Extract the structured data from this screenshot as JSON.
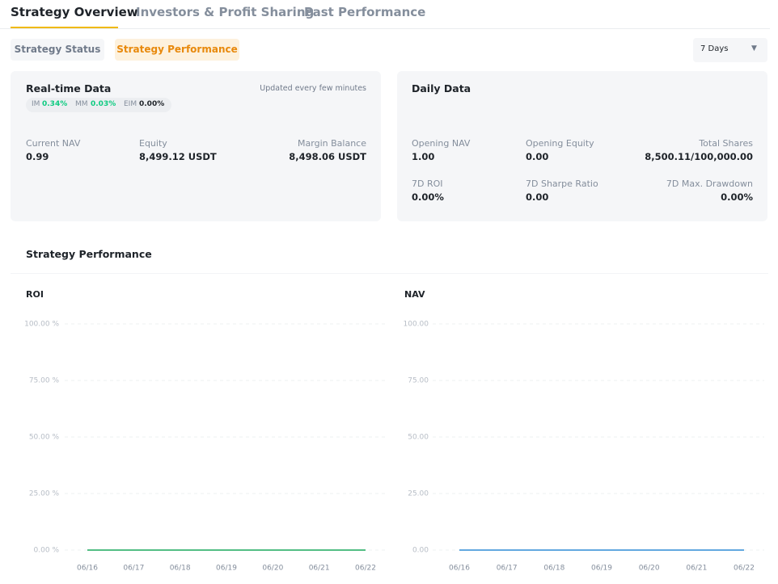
{
  "tabs": [
    "Strategy Overview",
    "Investors & Profit Sharing",
    "Past Performance"
  ],
  "sub_tabs": [
    "Strategy Status",
    "Strategy Performance"
  ],
  "period": "7 Days",
  "realtime": {
    "title": "Real-time Data",
    "note": "Updated every few minutes",
    "margins": [
      {
        "label": "IM",
        "value": "0.34%"
      },
      {
        "label": "MM",
        "value": "0.03%"
      },
      {
        "label": "EIM",
        "value": "0.00%"
      }
    ],
    "fields": [
      {
        "label": "Current NAV",
        "value": "0.99"
      },
      {
        "label": "Equity",
        "value": "8,499.12 USDT"
      },
      {
        "label": "Margin Balance",
        "value": "8,498.06 USDT"
      }
    ]
  },
  "daily": {
    "title": "Daily Data",
    "fields": [
      {
        "label": "Opening NAV",
        "value": "1.00"
      },
      {
        "label": "Opening Equity",
        "value": "0.00"
      },
      {
        "label": "Total Shares",
        "value": "8,500.11/100,000.00"
      },
      {
        "label": "7D ROI",
        "value": "0.00%"
      },
      {
        "label": "7D Sharpe Ratio",
        "value": "0.00"
      },
      {
        "label": "7D Max. Drawdown",
        "value": "0.00%"
      }
    ]
  },
  "performance_title": "Strategy Performance",
  "chart_data": [
    {
      "type": "line",
      "title": "ROI",
      "color": "#1aa85b",
      "categories": [
        "06/16",
        "06/17",
        "06/18",
        "06/19",
        "06/20",
        "06/21",
        "06/22"
      ],
      "values": [
        0,
        0,
        0,
        0,
        0,
        0,
        0
      ],
      "ylim": [
        0,
        100
      ],
      "yticks": [
        {
          "value": 0,
          "label": "0.00 %"
        },
        {
          "value": 25,
          "label": "25.00 %"
        },
        {
          "value": 50,
          "label": "50.00 %"
        },
        {
          "value": 75,
          "label": "75.00 %"
        },
        {
          "value": 100,
          "label": "100.00 %"
        }
      ],
      "grid": true
    },
    {
      "type": "line",
      "title": "NAV",
      "color": "#2e8bd6",
      "categories": [
        "06/16",
        "06/17",
        "06/18",
        "06/19",
        "06/20",
        "06/21",
        "06/22"
      ],
      "values": [
        0,
        0,
        0,
        0,
        0,
        0,
        0
      ],
      "ylim": [
        0,
        100
      ],
      "yticks": [
        {
          "value": 0,
          "label": "0.00"
        },
        {
          "value": 25,
          "label": "25.00"
        },
        {
          "value": 50,
          "label": "50.00"
        },
        {
          "value": 75,
          "label": "75.00"
        },
        {
          "value": 100,
          "label": "100.00"
        }
      ],
      "grid": true
    }
  ]
}
